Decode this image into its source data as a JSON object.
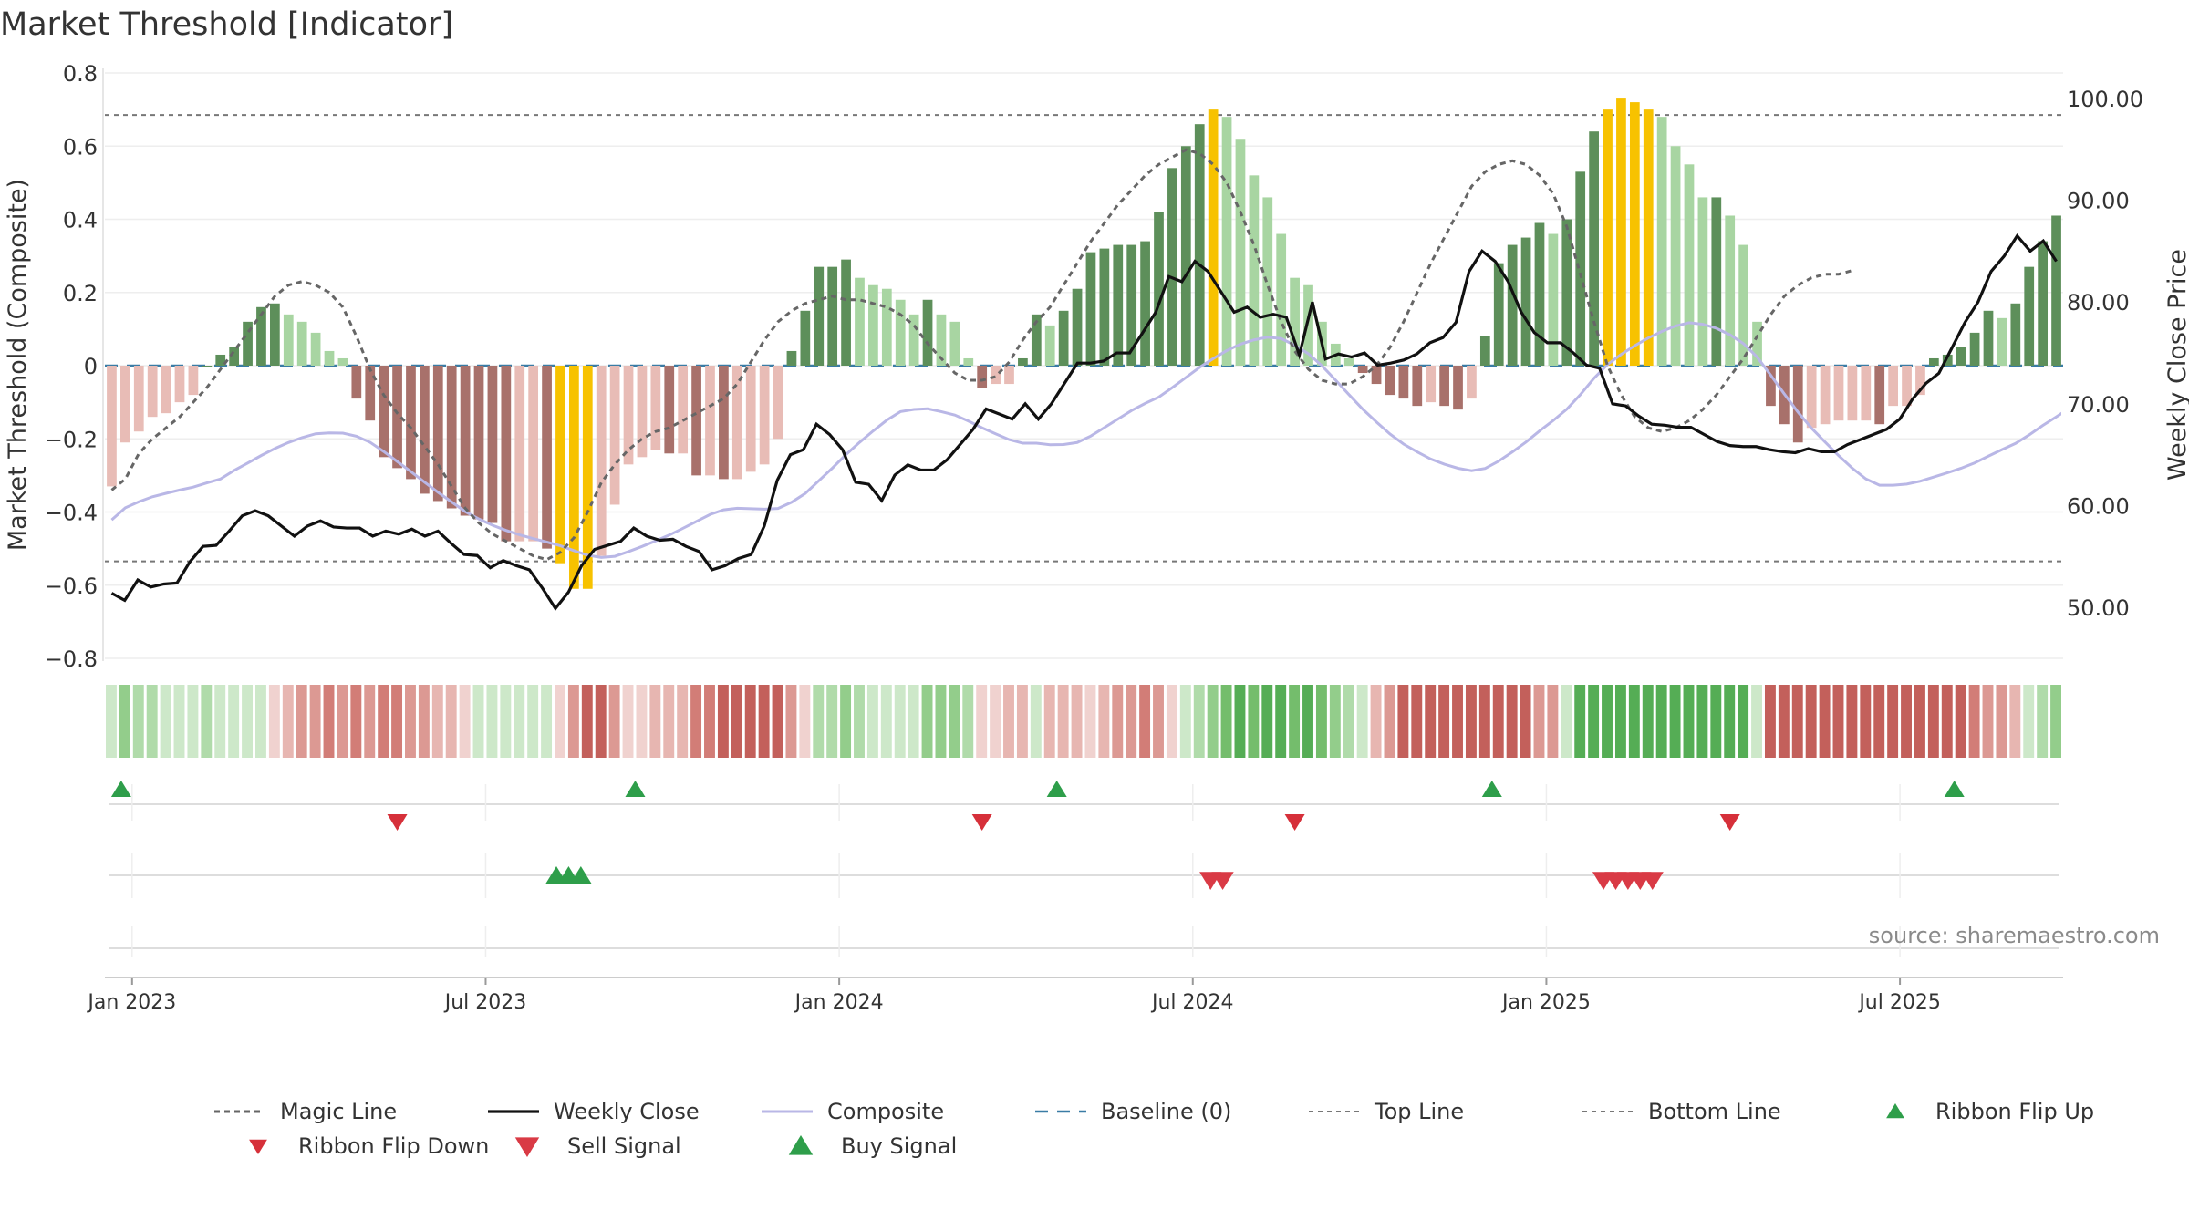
{
  "chart_data": {
    "type": "bar",
    "title": "Market Threshold [Indicator]",
    "ylabel_left": "Market Threshold (Composite)",
    "ylabel_right": "Weekly Close Price",
    "source": "source: sharemaestro.com",
    "ylim_left": [
      -0.8,
      0.8
    ],
    "ylim_right": [
      45.0,
      102.5
    ],
    "yticks_left": [
      {
        "v": 0.8,
        "label": "0.8"
      },
      {
        "v": 0.6,
        "label": "0.6"
      },
      {
        "v": 0.4,
        "label": "0.4"
      },
      {
        "v": 0.2,
        "label": "0.2"
      },
      {
        "v": 0,
        "label": "0"
      },
      {
        "v": -0.2,
        "label": "−0.2"
      },
      {
        "v": -0.4,
        "label": "−0.4"
      },
      {
        "v": -0.6,
        "label": "−0.6"
      },
      {
        "v": -0.8,
        "label": "−0.8"
      }
    ],
    "yticks_right": [
      {
        "v": 100,
        "label": "100.00"
      },
      {
        "v": 90,
        "label": "90.00"
      },
      {
        "v": 80,
        "label": "80.00"
      },
      {
        "v": 70,
        "label": "70.00"
      },
      {
        "v": 60,
        "label": "60.00"
      },
      {
        "v": 50,
        "label": "50.00"
      }
    ],
    "xticks": [
      {
        "week": 2,
        "label": "Jan 2023"
      },
      {
        "week": 28,
        "label": "Jul 2023"
      },
      {
        "week": 54,
        "label": "Jan 2024"
      },
      {
        "week": 80,
        "label": "Jul 2024"
      },
      {
        "week": 106,
        "label": "Jan 2025"
      },
      {
        "week": 132,
        "label": "Jul 2025"
      }
    ],
    "x_start": "2022-12-19",
    "x_range": [
      0,
      144
    ],
    "top_line": 0.685,
    "bottom_line": -0.535,
    "legend": {
      "placement": "bottom",
      "items": [
        "Magic Line",
        "Weekly Close",
        "Composite",
        "Baseline (0)",
        "Top Line",
        "Bottom Line",
        "Ribbon Flip Up",
        "Ribbon Flip Down",
        "Sell Signal",
        "Buy Signal"
      ]
    },
    "colors": {
      "up_strong": "#5d8f5a",
      "up_weak": "#a8d5a2",
      "down_strong": "#a8716b",
      "down_weak": "#e8bcb6",
      "extreme": "#f7c200",
      "magic": "#666666",
      "close": "#111111",
      "composite": "#b9b7e6",
      "baseline": "#3a7ca5",
      "buy": "#2e9e4a",
      "sell": "#d93a45"
    },
    "composite": [
      -0.33,
      -0.21,
      -0.18,
      -0.14,
      -0.13,
      -0.1,
      -0.08,
      0,
      0.03,
      0.05,
      0.12,
      0.16,
      0.17,
      0.14,
      0.12,
      0.09,
      0.04,
      0.02,
      -0.09,
      -0.15,
      -0.25,
      -0.28,
      -0.31,
      -0.35,
      -0.37,
      -0.39,
      -0.41,
      -0.42,
      -0.43,
      -0.48,
      -0.48,
      -0.48,
      -0.5,
      -0.54,
      -0.61,
      -0.61,
      -0.52,
      -0.38,
      -0.27,
      -0.25,
      -0.23,
      -0.24,
      -0.24,
      -0.3,
      -0.3,
      -0.31,
      -0.31,
      -0.29,
      -0.27,
      -0.2,
      0.04,
      0.15,
      0.27,
      0.27,
      0.29,
      0.24,
      0.22,
      0.21,
      0.18,
      0.14,
      0.18,
      0.14,
      0.12,
      0.02,
      -0.06,
      -0.05,
      -0.05,
      0.02,
      0.14,
      0.11,
      0.15,
      0.21,
      0.31,
      0.32,
      0.33,
      0.33,
      0.34,
      0.42,
      0.54,
      0.6,
      0.66,
      0.7,
      0.68,
      0.62,
      0.52,
      0.46,
      0.36,
      0.24,
      0.22,
      0.12,
      0.06,
      0.02,
      -0.02,
      -0.05,
      -0.08,
      -0.09,
      -0.11,
      -0.1,
      -0.11,
      -0.12,
      -0.09,
      0.08,
      0.28,
      0.33,
      0.35,
      0.39,
      0.36,
      0.4,
      0.53,
      0.64,
      0.7,
      0.73,
      0.72,
      0.7,
      0.68,
      0.6,
      0.55,
      0.46,
      0.46,
      0.41,
      0.33,
      0.12,
      -0.11,
      -0.16,
      -0.21,
      -0.17,
      -0.16,
      -0.15,
      -0.15,
      -0.15,
      -0.16,
      -0.11,
      -0.11,
      -0.08,
      0.02,
      0.03,
      0.05,
      0.09,
      0.15,
      0.13,
      0.17,
      0.27,
      0.34,
      0.41,
      0.42
    ],
    "magic_line": [
      -0.34,
      -0.31,
      -0.24,
      -0.2,
      -0.17,
      -0.14,
      -0.1,
      -0.06,
      -0.01,
      0.04,
      0.09,
      0.14,
      0.19,
      0.22,
      0.23,
      0.22,
      0.2,
      0.16,
      0.08,
      -0.01,
      -0.08,
      -0.13,
      -0.17,
      -0.22,
      -0.27,
      -0.33,
      -0.39,
      -0.43,
      -0.46,
      -0.48,
      -0.5,
      -0.52,
      -0.53,
      -0.51,
      -0.47,
      -0.4,
      -0.32,
      -0.27,
      -0.23,
      -0.2,
      -0.18,
      -0.17,
      -0.15,
      -0.13,
      -0.11,
      -0.09,
      -0.05,
      0.01,
      0.07,
      0.12,
      0.15,
      0.17,
      0.18,
      0.19,
      0.18,
      0.18,
      0.17,
      0.16,
      0.14,
      0.11,
      0.06,
      0.02,
      -0.02,
      -0.04,
      -0.04,
      -0.03,
      0.01,
      0.07,
      0.12,
      0.16,
      0.22,
      0.28,
      0.34,
      0.39,
      0.44,
      0.48,
      0.52,
      0.55,
      0.57,
      0.59,
      0.58,
      0.55,
      0.5,
      0.42,
      0.33,
      0.22,
      0.12,
      0.04,
      -0.01,
      -0.04,
      -0.05,
      -0.05,
      -0.03,
      0.0,
      0.05,
      0.12,
      0.2,
      0.28,
      0.35,
      0.42,
      0.49,
      0.53,
      0.55,
      0.56,
      0.55,
      0.52,
      0.47,
      0.38,
      0.25,
      0.12,
      0.0,
      -0.08,
      -0.14,
      -0.17,
      -0.18,
      -0.17,
      -0.15,
      -0.12,
      -0.08,
      -0.03,
      0.02,
      0.08,
      0.14,
      0.19,
      0.22,
      0.24,
      0.25,
      0.25,
      0.26
    ],
    "weekly_close": [
      51.4,
      50.7,
      52.7,
      52.0,
      52.3,
      52.4,
      54.5,
      56.0,
      56.1,
      57.5,
      59.0,
      59.5,
      59.0,
      58.0,
      57.0,
      58.0,
      58.5,
      57.9,
      57.8,
      57.8,
      57.0,
      57.5,
      57.2,
      57.7,
      57.0,
      57.5,
      56.3,
      55.2,
      55.1,
      53.9,
      54.6,
      54.1,
      53.7,
      51.9,
      49.9,
      51.5,
      54.1,
      55.7,
      56.1,
      56.5,
      57.8,
      57.0,
      56.6,
      56.7,
      56.0,
      55.5,
      53.7,
      54.1,
      54.8,
      55.2,
      58.0,
      62.5,
      65.0,
      65.5,
      68.0,
      67.0,
      65.5,
      62.3,
      62.1,
      60.5,
      63.0,
      64.0,
      63.5,
      63.5,
      64.5,
      66.0,
      67.5,
      69.5,
      69.0,
      68.5,
      70.0,
      68.5,
      70.0,
      72.0,
      74.0,
      74.0,
      74.2,
      75.0,
      75.0,
      77.0,
      79.0,
      82.5,
      82.0,
      84.0,
      83.0,
      81.0,
      79.0,
      79.5,
      78.5,
      78.8,
      78.5,
      74.8,
      80.0,
      74.4,
      74.9,
      74.6,
      75.0,
      73.8,
      74.0,
      74.3,
      74.9,
      76.0,
      76.5,
      78.0,
      83.0,
      85.0,
      84.0,
      82.0,
      79.0,
      77.0,
      76.0,
      76.0,
      75.0,
      73.8,
      73.5,
      70.0,
      69.8,
      68.8,
      68.0,
      67.9,
      67.7,
      67.7,
      67.0,
      66.3,
      65.9,
      65.8,
      65.8,
      65.5,
      65.3,
      65.2,
      65.6,
      65.3,
      65.3,
      66.0,
      66.5,
      67.0,
      67.5,
      68.5,
      70.5,
      72.0,
      73.0,
      75.5,
      78.0,
      80.0,
      83.0,
      84.5,
      86.5,
      85.0,
      86.0,
      84.0
    ]
  }
}
